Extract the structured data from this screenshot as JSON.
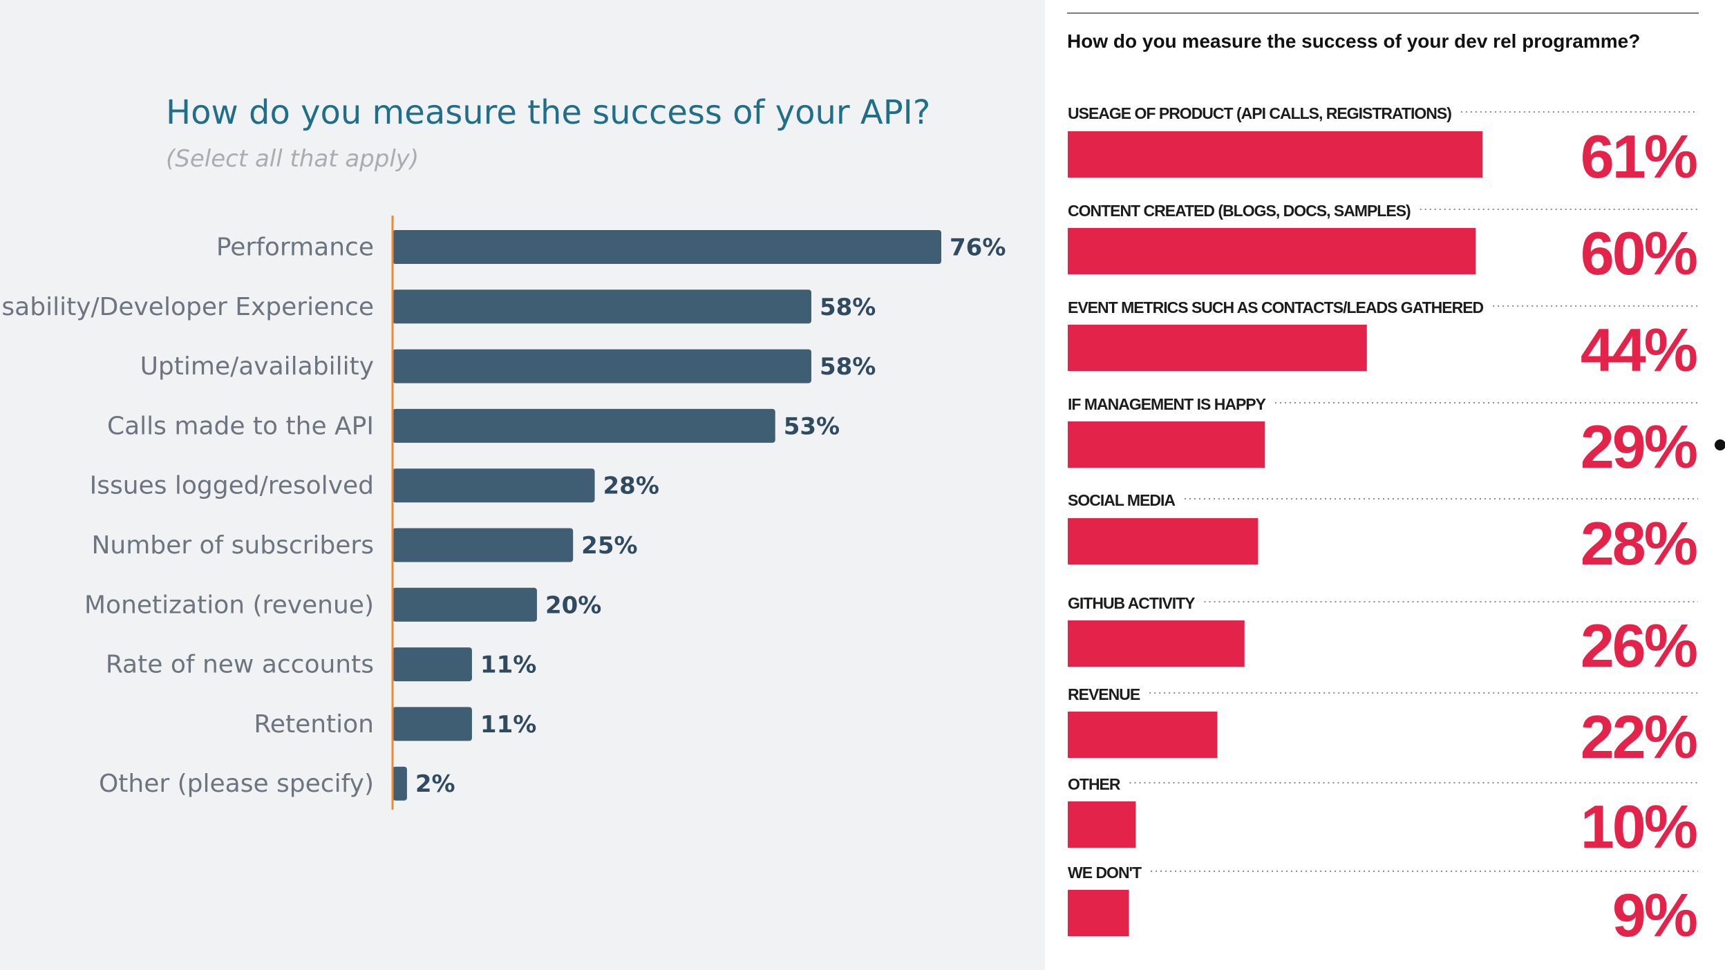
{
  "left": {
    "title": "How do you measure the success of your API?",
    "subtitle": "(Select all that apply)",
    "colors": {
      "bar": "#3f5d73",
      "axis": "#f08a2c",
      "value_text": "#2f4b61",
      "label_text": "#6b7580",
      "title": "#1f6f8b"
    }
  },
  "right": {
    "title": "How do you measure the success of your dev rel programme?",
    "colors": {
      "bar": "#e3234a",
      "value_text": "#e3234a",
      "label_text": "#1c1c1c"
    }
  },
  "chart_data": [
    {
      "type": "bar",
      "orientation": "horizontal",
      "title": "How do you measure the success of your API?",
      "subtitle": "(Select all that apply)",
      "categories": [
        "Performance",
        "Usability/Developer Experience",
        "Uptime/availability",
        "Calls made to the API",
        "Issues logged/resolved",
        "Number of subscribers",
        "Monetization (revenue)",
        "Rate of new accounts",
        "Retention",
        "Other (please specify)"
      ],
      "values": [
        76,
        58,
        58,
        53,
        28,
        25,
        20,
        11,
        11,
        2
      ],
      "value_labels": [
        "76%",
        "58%",
        "58%",
        "53%",
        "28%",
        "25%",
        "20%",
        "11%",
        "11%",
        "2%"
      ],
      "xlim": [
        0,
        100
      ],
      "grid": false
    },
    {
      "type": "bar",
      "orientation": "horizontal",
      "title": "How do you measure the success of your dev rel programme?",
      "categories": [
        "USEAGE OF PRODUCT (API CALLS, REGISTRATIONS)",
        "CONTENT CREATED (BLOGS, DOCS, SAMPLES)",
        "EVENT METRICS SUCH AS CONTACTS/LEADS GATHERED",
        "IF MANAGEMENT IS HAPPY",
        "SOCIAL MEDIA",
        "GITHUB ACTIVITY",
        "REVENUE",
        "OTHER",
        "WE DON'T"
      ],
      "values": [
        61,
        60,
        44,
        29,
        28,
        26,
        22,
        10,
        9
      ],
      "value_labels": [
        "61%",
        "60%",
        "44%",
        "29%",
        "28%",
        "26%",
        "22%",
        "10%",
        "9%"
      ],
      "xlim": [
        0,
        100
      ],
      "grid": false
    }
  ]
}
